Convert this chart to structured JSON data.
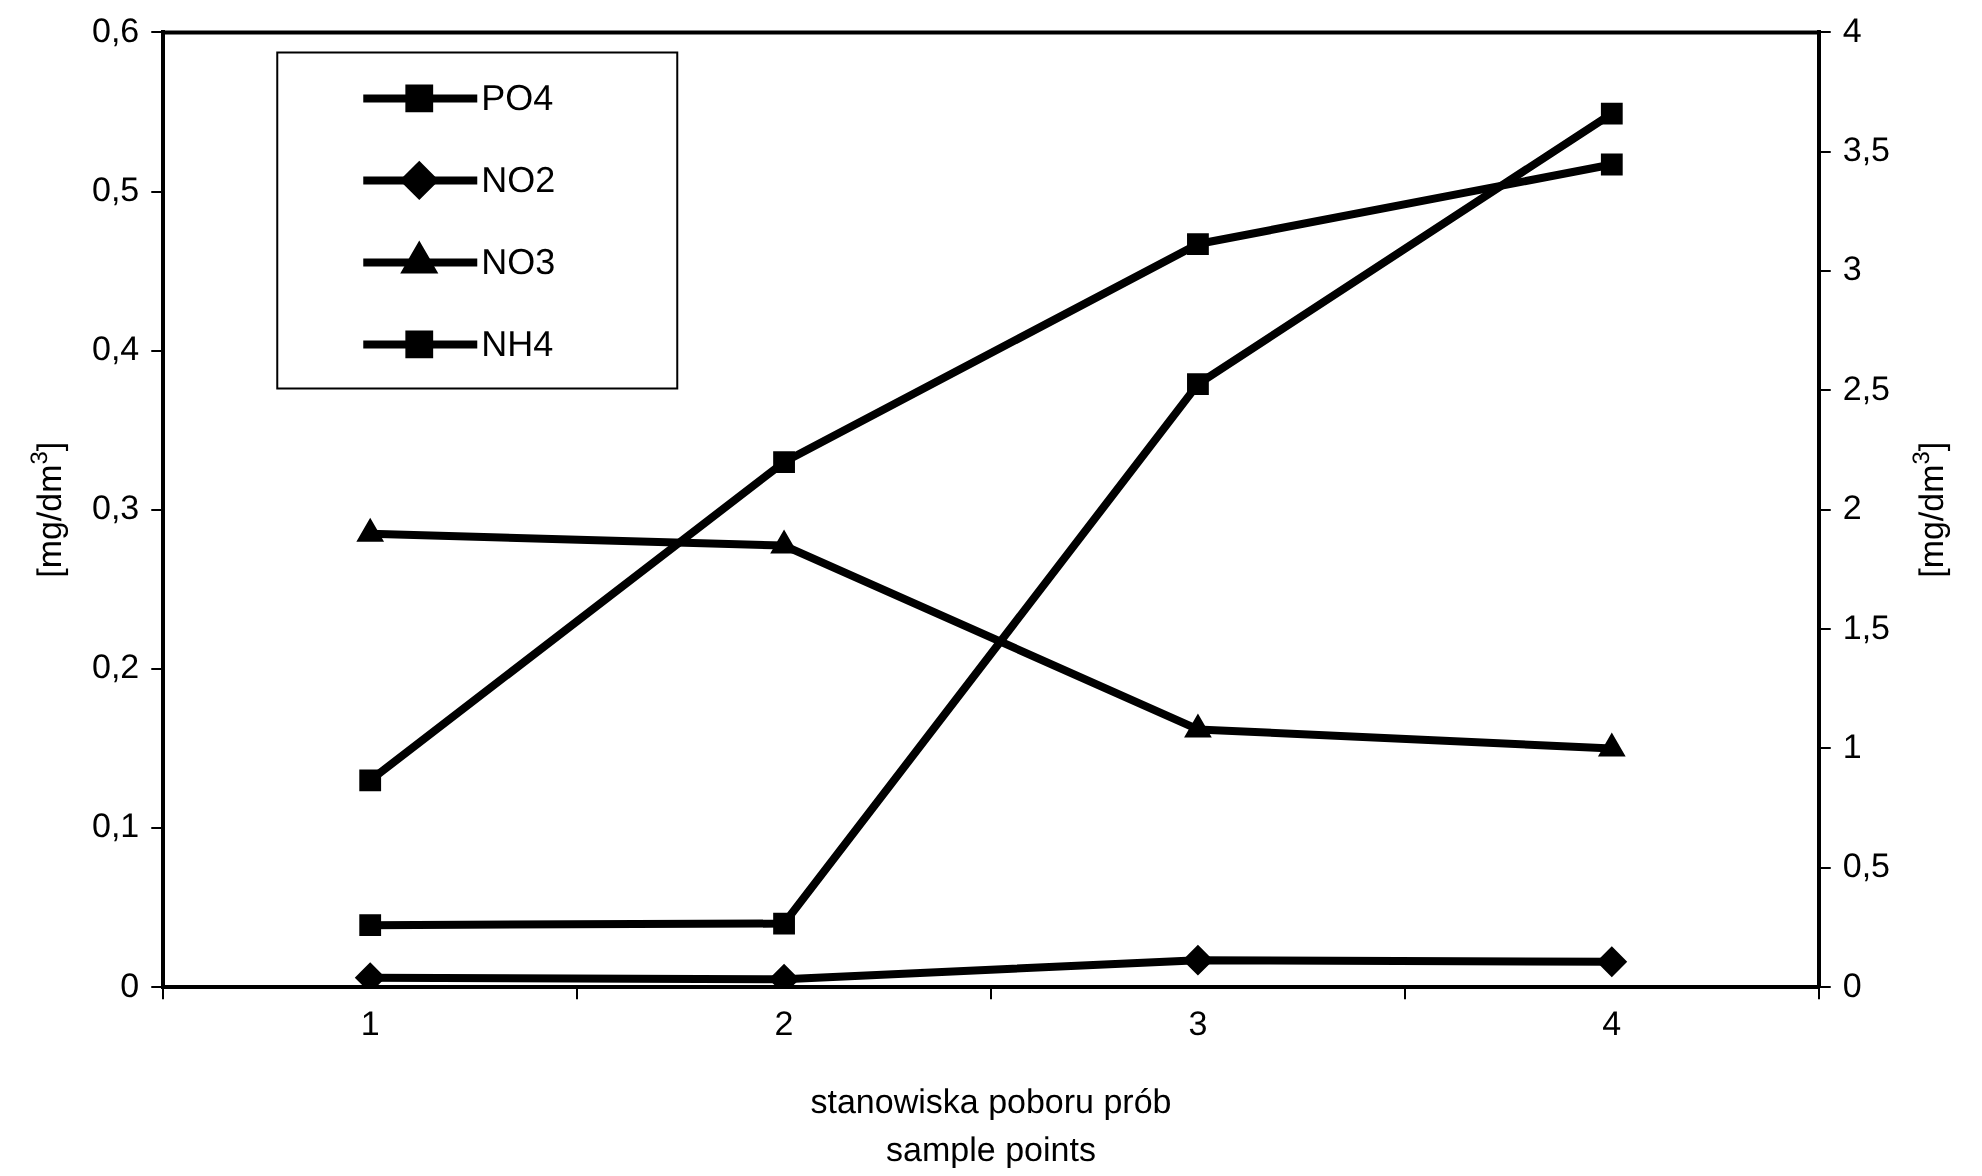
{
  "chart_data": {
    "type": "line",
    "xlabel": "stanowiska poboru prób\nsample points",
    "ylabel": "[mg/dm$^{3}$]",
    "y2label": "[mg/dm$^{3}$]",
    "categories": [
      "1",
      "2",
      "3",
      "4"
    ],
    "series": [
      {
        "name": "PO4",
        "color": "#000000",
        "marker": "square",
        "values": [
          0.13,
          0.33,
          0.467,
          0.517
        ]
      },
      {
        "name": "NO2",
        "color": "#000000",
        "marker": "diamond",
        "values": [
          0.006,
          0.005,
          0.017,
          0.016
        ]
      },
      {
        "name": "NO3",
        "color": "#000000",
        "marker": "triangle",
        "axis": "y2",
        "values": [
          1.9,
          1.85,
          1.08,
          1.0
        ]
      },
      {
        "name": "NH4",
        "color": "#000000",
        "marker": "square",
        "values": [
          0.039,
          0.04,
          0.379,
          0.549
        ]
      }
    ],
    "ylim": [
      0,
      0.6
    ],
    "yticks": [
      0,
      {
        "value": 0.1,
        "label": "0,1"
      },
      {
        "value": 0.2,
        "label": "0,2"
      },
      {
        "value": 0.3,
        "label": "0,3"
      },
      {
        "value": 0.4,
        "label": "0,4"
      },
      {
        "value": 0.5,
        "label": "0,5"
      },
      {
        "value": 0.6,
        "label": "0,6"
      }
    ],
    "y2lim": [
      0,
      4
    ],
    "y2ticks": [
      0,
      {
        "value": 0.5,
        "label": "0,5"
      },
      1,
      {
        "value": 1.5,
        "label": "1,5"
      },
      2,
      {
        "value": 2.5,
        "label": "2,5"
      },
      3,
      {
        "value": 3.5,
        "label": "3,5"
      },
      4
    ],
    "grid": false,
    "legend": "top left",
    "line_style": "solid"
  }
}
